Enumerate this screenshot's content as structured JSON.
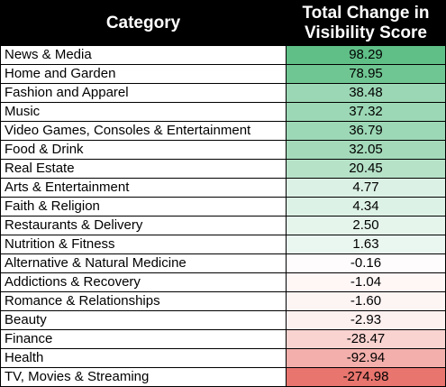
{
  "chart_data": {
    "type": "table",
    "columns": [
      "Category",
      "Total Change in Visibility Score"
    ],
    "rows": [
      {
        "category": "News & Media",
        "value": 98.29,
        "display": "98.29"
      },
      {
        "category": "Home and Garden",
        "value": 78.95,
        "display": "78.95"
      },
      {
        "category": "Fashion and Apparel",
        "value": 38.48,
        "display": "38.48"
      },
      {
        "category": "Music",
        "value": 37.32,
        "display": "37.32"
      },
      {
        "category": "Video Games, Consoles & Entertainment",
        "value": 36.79,
        "display": "36.79"
      },
      {
        "category": "Food & Drink",
        "value": 32.05,
        "display": "32.05"
      },
      {
        "category": "Real Estate",
        "value": 20.45,
        "display": "20.45"
      },
      {
        "category": "Arts & Entertainment",
        "value": 4.77,
        "display": "4.77"
      },
      {
        "category": "Faith & Religion",
        "value": 4.34,
        "display": "4.34"
      },
      {
        "category": "Restaurants & Delivery",
        "value": 2.5,
        "display": "2.50"
      },
      {
        "category": "Nutrition & Fitness",
        "value": 1.63,
        "display": "1.63"
      },
      {
        "category": "Alternative & Natural Medicine",
        "value": -0.16,
        "display": "-0.16"
      },
      {
        "category": "Addictions & Recovery",
        "value": -1.04,
        "display": "-1.04"
      },
      {
        "category": "Romance & Relationships",
        "value": -1.6,
        "display": "-1.60"
      },
      {
        "category": "Beauty",
        "value": -2.93,
        "display": "-2.93"
      },
      {
        "category": "Finance",
        "value": -28.47,
        "display": "-28.47"
      },
      {
        "category": "Health",
        "value": -92.94,
        "display": "-92.94"
      },
      {
        "category": "TV, Movies & Streaming",
        "value": -274.98,
        "display": "-274.98"
      }
    ],
    "color_scale": {
      "max_color": "#5fbf87",
      "mid_color": "#ffffff",
      "min_color": "#e8756e",
      "midpoint": 0
    }
  }
}
